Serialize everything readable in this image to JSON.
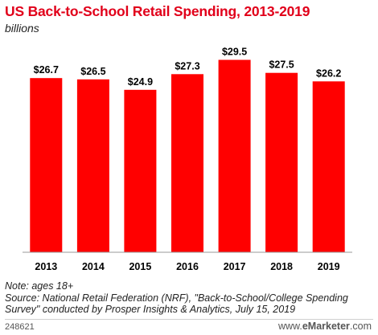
{
  "header": {
    "title": "US Back-to-School Retail Spending, 2013-2019",
    "subtitle": "billions"
  },
  "chart_data": {
    "type": "bar",
    "title": "US Back-to-School Retail Spending, 2013-2019",
    "subtitle": "billions",
    "categories": [
      "2013",
      "2014",
      "2015",
      "2016",
      "2017",
      "2018",
      "2019"
    ],
    "values": [
      26.7,
      26.5,
      24.9,
      27.3,
      29.5,
      27.5,
      26.2
    ],
    "data_labels": [
      "$26.7",
      "$26.5",
      "$24.9",
      "$27.3",
      "$29.5",
      "$27.5",
      "$26.2"
    ],
    "xlabel": "",
    "ylabel": "",
    "ylim": [
      0,
      33.5
    ],
    "grid": false,
    "bar_color": "#ff0000"
  },
  "footer": {
    "note": "Note: ages 18+",
    "source_line1": "Source: National Retail Federation (NRF), \"Back-to-School/College Spending",
    "source_line2": "Survey\" conducted by Prosper Insights & Analytics, July 15, 2019",
    "chart_id": "248621",
    "brand_prefix": "www.",
    "brand_name": "eMarketer",
    "brand_suffix": ".com"
  }
}
